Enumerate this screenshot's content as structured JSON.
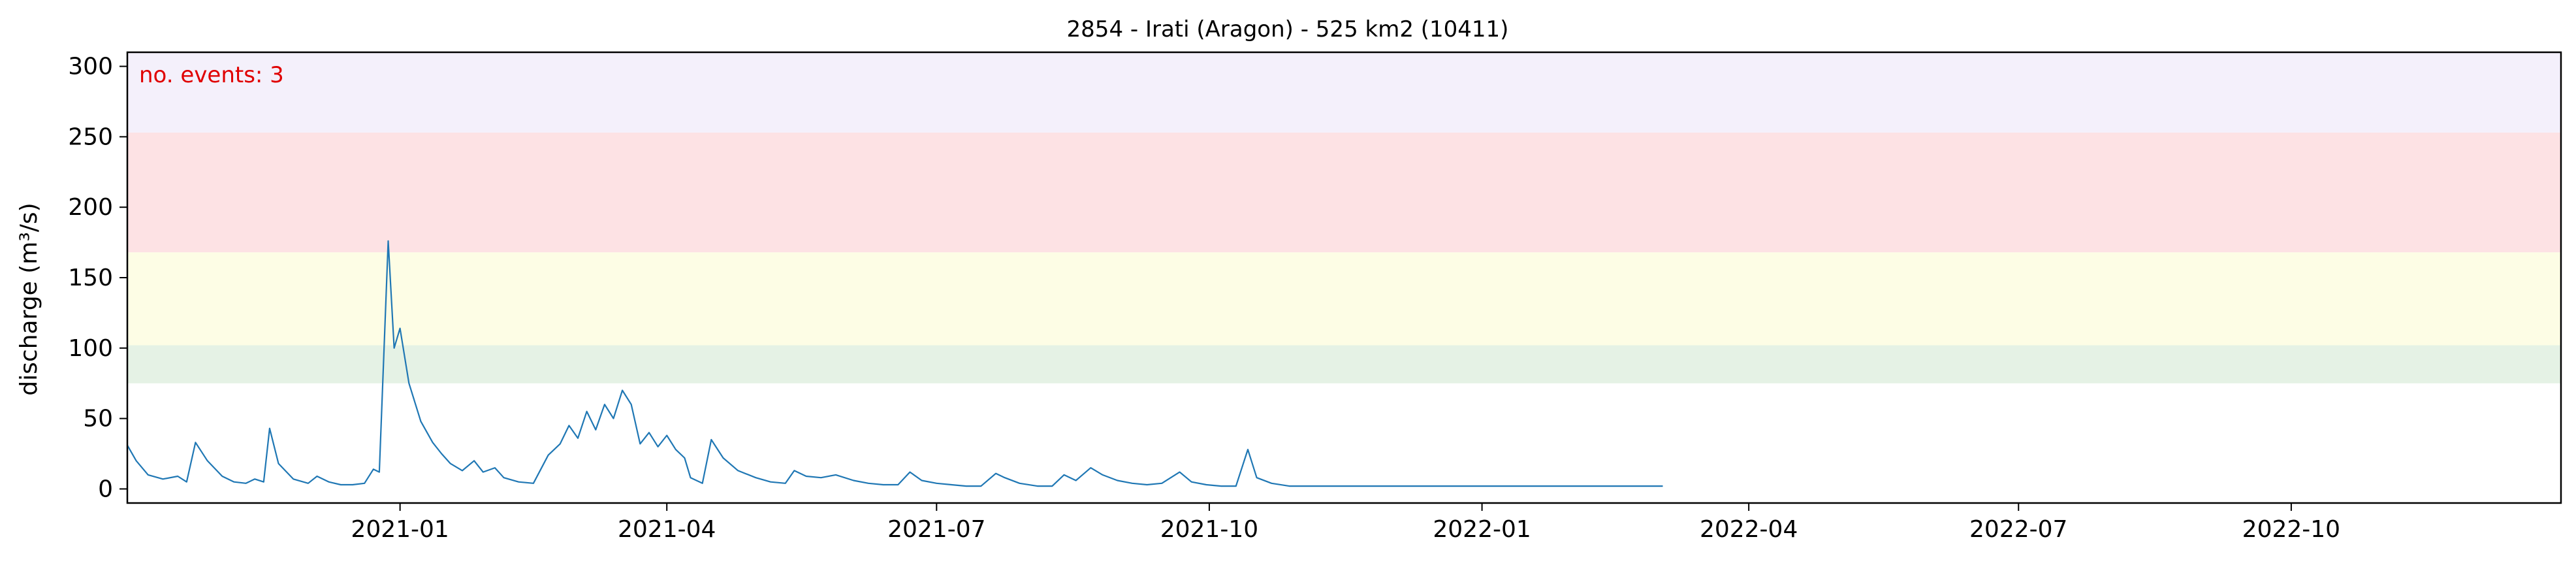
{
  "chart_data": {
    "type": "line",
    "title": "2854 - Irati (Aragon) - 525 km2 (10411)",
    "xlabel": "",
    "ylabel": "discharge (m³/s)",
    "xlim": [
      "2020-10-01",
      "2022-12-31"
    ],
    "ylim": [
      -10,
      310
    ],
    "xticks": [
      {
        "date": "2021-01-01",
        "label": "2021-01"
      },
      {
        "date": "2021-04-01",
        "label": "2021-04"
      },
      {
        "date": "2021-07-01",
        "label": "2021-07"
      },
      {
        "date": "2021-10-01",
        "label": "2021-10"
      },
      {
        "date": "2022-01-01",
        "label": "2022-01"
      },
      {
        "date": "2022-04-01",
        "label": "2022-04"
      },
      {
        "date": "2022-07-01",
        "label": "2022-07"
      },
      {
        "date": "2022-10-01",
        "label": "2022-10"
      }
    ],
    "yticks": [
      0,
      50,
      100,
      150,
      200,
      250,
      300
    ],
    "threshold_bands": [
      {
        "from": 75,
        "to": 102,
        "color": "#e5f2e5"
      },
      {
        "from": 102,
        "to": 168,
        "color": "#fdfde5"
      },
      {
        "from": 168,
        "to": 253,
        "color": "#fde2e4"
      },
      {
        "from": 253,
        "to": 310,
        "color": "#f4f0fb"
      }
    ],
    "annotation": {
      "text": "no. events: 3",
      "color": "#e00000"
    },
    "line_color": "#1f77b4",
    "event_color": "#e00000",
    "series": [
      {
        "points": [
          [
            "2020-10-01",
            31
          ],
          [
            "2020-10-04",
            20
          ],
          [
            "2020-10-08",
            10
          ],
          [
            "2020-10-13",
            7
          ],
          [
            "2020-10-18",
            9
          ],
          [
            "2020-10-21",
            5
          ],
          [
            "2020-10-24",
            33
          ],
          [
            "2020-10-28",
            20
          ],
          [
            "2020-11-02",
            9
          ],
          [
            "2020-11-06",
            5
          ],
          [
            "2020-11-10",
            4
          ],
          [
            "2020-11-13",
            7
          ],
          [
            "2020-11-16",
            5
          ],
          [
            "2020-11-18",
            43
          ],
          [
            "2020-11-21",
            18
          ],
          [
            "2020-11-26",
            7
          ],
          [
            "2020-12-01",
            4
          ],
          [
            "2020-12-04",
            9
          ],
          [
            "2020-12-08",
            5
          ],
          [
            "2020-12-12",
            3
          ],
          [
            "2020-12-16",
            3
          ],
          [
            "2020-12-20",
            4
          ],
          [
            "2020-12-23",
            14
          ],
          [
            "2020-12-25",
            12
          ],
          [
            "2020-12-28",
            176
          ],
          [
            "2020-12-30",
            100
          ],
          [
            "2021-01-01",
            114
          ],
          [
            "2021-01-04",
            75
          ],
          [
            "2021-01-08",
            48
          ],
          [
            "2021-01-12",
            33
          ],
          [
            "2021-01-15",
            25
          ],
          [
            "2021-01-18",
            18
          ],
          [
            "2021-01-22",
            13
          ],
          [
            "2021-01-26",
            20
          ],
          [
            "2021-01-29",
            12
          ],
          [
            "2021-02-02",
            15
          ],
          [
            "2021-02-05",
            8
          ],
          [
            "2021-02-10",
            5
          ],
          [
            "2021-02-15",
            4
          ],
          [
            "2021-02-20",
            24
          ],
          [
            "2021-02-24",
            32
          ],
          [
            "2021-02-27",
            45
          ],
          [
            "2021-03-02",
            36
          ],
          [
            "2021-03-05",
            55
          ],
          [
            "2021-03-08",
            42
          ],
          [
            "2021-03-11",
            60
          ],
          [
            "2021-03-14",
            50
          ],
          [
            "2021-03-17",
            70
          ],
          [
            "2021-03-20",
            60
          ],
          [
            "2021-03-23",
            32
          ],
          [
            "2021-03-26",
            40
          ],
          [
            "2021-03-29",
            30
          ],
          [
            "2021-04-01",
            38
          ],
          [
            "2021-04-04",
            28
          ],
          [
            "2021-04-07",
            22
          ],
          [
            "2021-04-09",
            8
          ],
          [
            "2021-04-13",
            4
          ],
          [
            "2021-04-16",
            35
          ],
          [
            "2021-04-20",
            22
          ],
          [
            "2021-04-25",
            13
          ],
          [
            "2021-05-01",
            8
          ],
          [
            "2021-05-06",
            5
          ],
          [
            "2021-05-11",
            4
          ],
          [
            "2021-05-14",
            13
          ],
          [
            "2021-05-18",
            9
          ],
          [
            "2021-05-23",
            8
          ],
          [
            "2021-05-28",
            10
          ],
          [
            "2021-06-03",
            6
          ],
          [
            "2021-06-08",
            4
          ],
          [
            "2021-06-13",
            3
          ],
          [
            "2021-06-18",
            3
          ],
          [
            "2021-06-22",
            12
          ],
          [
            "2021-06-26",
            6
          ],
          [
            "2021-07-01",
            4
          ],
          [
            "2021-07-06",
            3
          ],
          [
            "2021-07-11",
            2
          ],
          [
            "2021-07-16",
            2
          ],
          [
            "2021-07-21",
            11
          ],
          [
            "2021-07-24",
            8
          ],
          [
            "2021-07-29",
            4
          ],
          [
            "2021-08-04",
            2
          ],
          [
            "2021-08-09",
            2
          ],
          [
            "2021-08-13",
            10
          ],
          [
            "2021-08-17",
            6
          ],
          [
            "2021-08-22",
            15
          ],
          [
            "2021-08-26",
            10
          ],
          [
            "2021-08-31",
            6
          ],
          [
            "2021-09-05",
            4
          ],
          [
            "2021-09-10",
            3
          ],
          [
            "2021-09-15",
            4
          ],
          [
            "2021-09-21",
            12
          ],
          [
            "2021-09-25",
            5
          ],
          [
            "2021-09-30",
            3
          ],
          [
            "2021-10-05",
            2
          ],
          [
            "2021-10-10",
            2
          ],
          [
            "2021-10-14",
            28
          ],
          [
            "2021-10-17",
            8
          ],
          [
            "2021-10-22",
            4
          ],
          [
            "2021-10-28",
            2
          ],
          [
            "2021-11-03",
            2
          ],
          [
            "2021-11-08",
            2
          ],
          [
            "2021-11-13",
            2
          ],
          [
            "2021-11-18",
            2
          ],
          [
            "2021-11-23",
            2
          ],
          [
            "2021-11-28",
            2
          ],
          [
            "2021-12-03",
            2
          ],
          [
            "2021-12-08",
            2
          ],
          [
            "2021-12-13",
            2
          ],
          [
            "2021-12-18",
            2
          ],
          [
            "2021-12-23",
            2
          ],
          [
            "2021-12-28",
            2
          ],
          [
            "2022-01-02",
            2
          ],
          [
            "2022-01-07",
            2
          ],
          [
            "2022-01-12",
            2
          ],
          [
            "2022-01-17",
            2
          ],
          [
            "2022-01-22",
            2
          ],
          [
            "2022-01-27",
            2
          ],
          [
            "2022-02-01",
            2
          ],
          [
            "2022-02-06",
            2
          ],
          [
            "2022-02-11",
            2
          ],
          [
            "2022-02-16",
            2
          ],
          [
            "2022-02-21",
            2
          ],
          [
            "2022-02-26",
            2
          ],
          [
            "2022-03-03",
            2
          ]
        ]
      }
    ]
  }
}
